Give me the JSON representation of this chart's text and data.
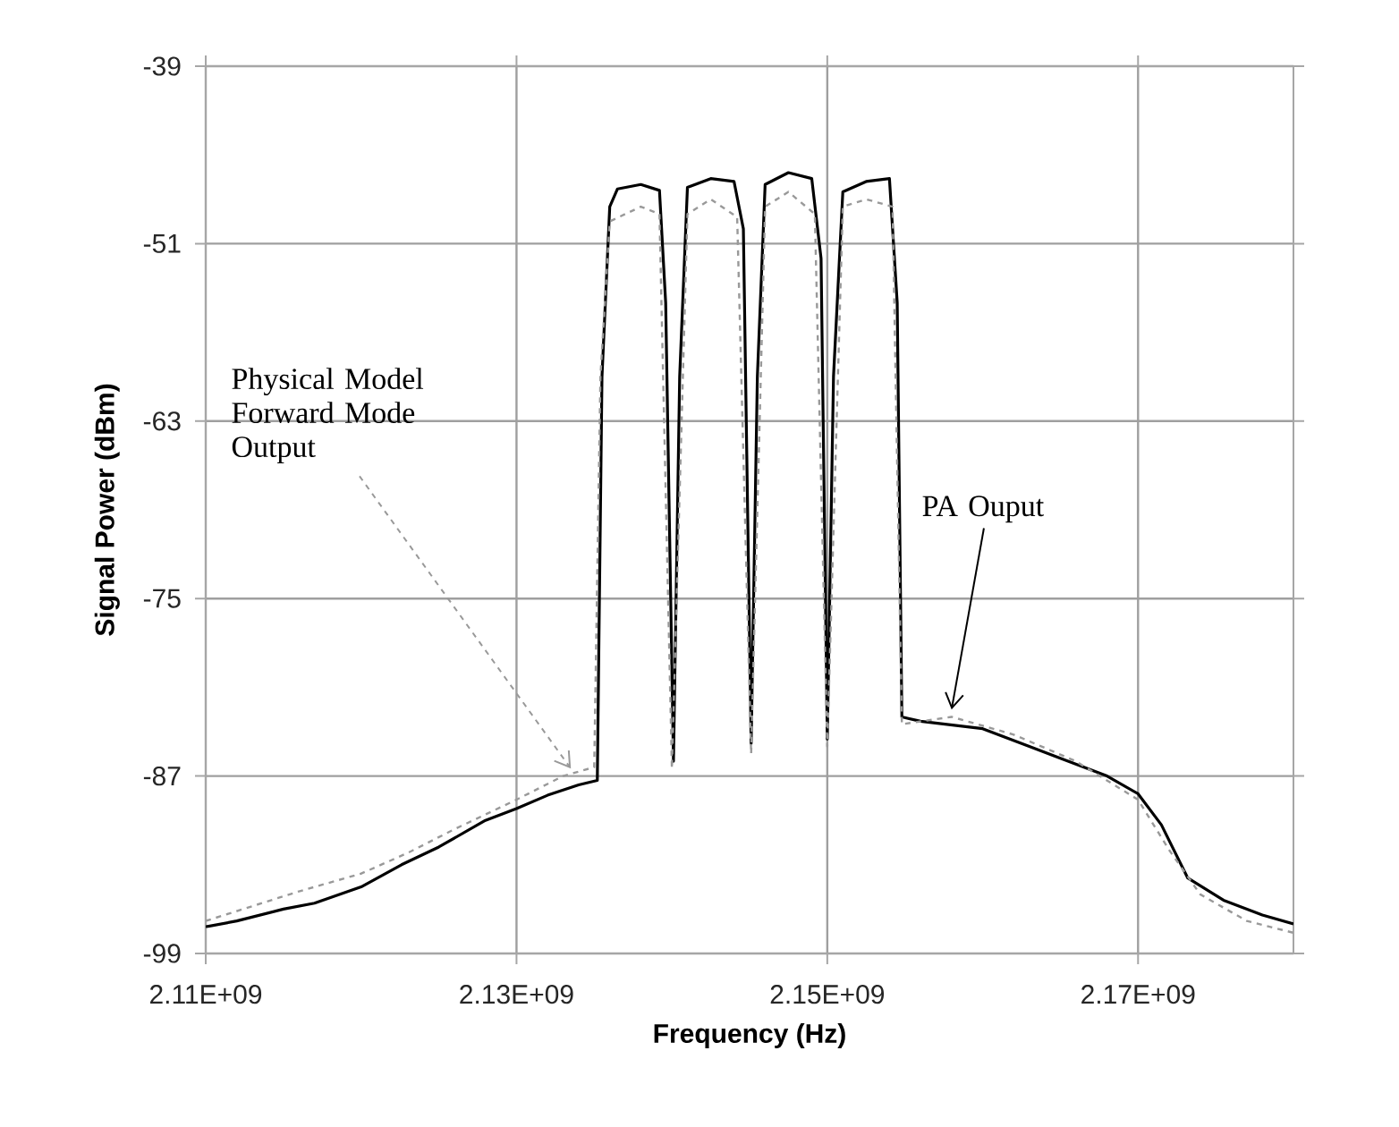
{
  "chart_data": {
    "type": "line",
    "xlabel": "Frequency (Hz)",
    "ylabel": "Signal Power (dBm)",
    "xlim": [
      2110000000,
      2180000000
    ],
    "xticks": [
      {
        "value": 2110000000,
        "label": "2.11E+09"
      },
      {
        "value": 2130000000,
        "label": "2.13E+09"
      },
      {
        "value": 2150000000,
        "label": "2.15E+09"
      },
      {
        "value": 2170000000,
        "label": "2.17E+09"
      }
    ],
    "ylim": [
      -99,
      -39
    ],
    "yticks": [
      -99,
      -87,
      -75,
      -63,
      -51,
      -39
    ],
    "grid": true,
    "series": [
      {
        "color": "#000000",
        "line_style": "solid",
        "x": [
          2110000000,
          2112000000,
          2115000000,
          2117000000,
          2120000000,
          2122600000,
          2125000000,
          2128000000,
          2130000000,
          2132000000,
          2134000000,
          2135200000,
          2135500000,
          2136000000,
          2136500000,
          2138000000,
          2139200000,
          2139600000,
          2140100000,
          2140500000,
          2141000000,
          2142500000,
          2144000000,
          2144600000,
          2145100000,
          2145500000,
          2146000000,
          2147500000,
          2149000000,
          2149600000,
          2150000000,
          2150400000,
          2151000000,
          2152500000,
          2154000000,
          2154500000,
          2154800000,
          2156000000,
          2160000000,
          2163000000,
          2165000000,
          2168000000,
          2170000000,
          2171500000,
          2173200000,
          2175500000,
          2178000000,
          2180000000
        ],
        "values": [
          -97.2,
          -96.8,
          -96.0,
          -95.6,
          -94.5,
          -93.0,
          -91.8,
          -90.0,
          -89.2,
          -88.3,
          -87.6,
          -87.3,
          -60,
          -48.5,
          -47.3,
          -47.0,
          -47.4,
          -55,
          -86.0,
          -60,
          -47.2,
          -46.6,
          -46.8,
          -50,
          -84.8,
          -60,
          -47.0,
          -46.2,
          -46.6,
          -52,
          -84.5,
          -60,
          -47.5,
          -46.8,
          -46.6,
          -55,
          -83.0,
          -83.3,
          -83.8,
          -85.0,
          -85.8,
          -87.0,
          -88.2,
          -90.3,
          -93.9,
          -95.4,
          -96.4,
          -97.0
        ]
      },
      {
        "color": "#999999",
        "line_style": "dashed",
        "x": [
          2110000000,
          2113000000,
          2116000000,
          2120000000,
          2123000000,
          2126000000,
          2130000000,
          2133000000,
          2135000000,
          2135400000,
          2136000000,
          2138000000,
          2139200000,
          2140000000,
          2141000000,
          2142500000,
          2144200000,
          2145100000,
          2146000000,
          2147500000,
          2149200000,
          2150000000,
          2151000000,
          2152500000,
          2154200000,
          2154800000,
          2158000000,
          2162000000,
          2166000000,
          2170000000,
          2172000000,
          2174000000,
          2177000000,
          2180000000
        ],
        "values": [
          -96.8,
          -95.8,
          -94.8,
          -93.6,
          -92.2,
          -90.6,
          -88.6,
          -87.0,
          -86.4,
          -60,
          -49.5,
          -48.5,
          -49,
          -86.5,
          -49,
          -48.0,
          -49.2,
          -85.5,
          -48.5,
          -47.5,
          -49,
          -85.0,
          -48.5,
          -48.0,
          -48.5,
          -83.5,
          -83.0,
          -84.2,
          -86.0,
          -88.6,
          -92.0,
          -95.0,
          -96.8,
          -97.6
        ]
      }
    ],
    "annotations": [
      {
        "text": "Physical Model Forward Mode Output",
        "x": 2133500000,
        "y": -86.5
      },
      {
        "text": "PA Ouput",
        "x": 2158000000,
        "y": -82.5
      }
    ]
  }
}
